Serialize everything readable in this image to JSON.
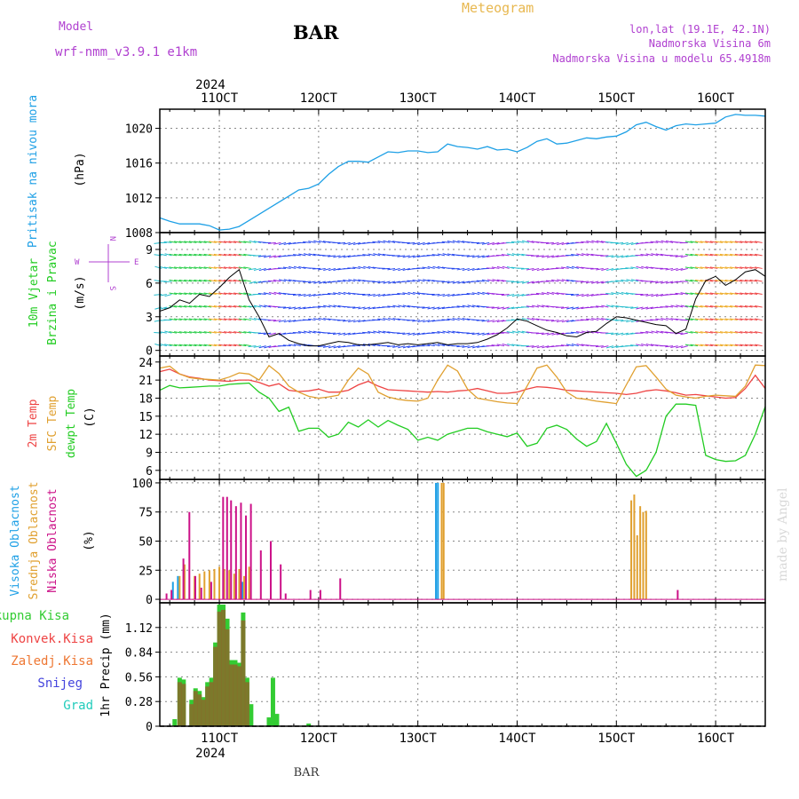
{
  "header": {
    "model_label": "Model",
    "model_name": "wrf-nmm_v3.9.1 e1km",
    "station": "BAR",
    "title": "Meteogram",
    "lonlat": "lon,lat (19.1E, 42.1N)",
    "elevation": "Nadmorska Visina 6m",
    "model_elevation": "Nadmorska Visina u modelu 65.4918m",
    "footer": "BAR",
    "watermark": "made by Angel",
    "year": "2024"
  },
  "colors": {
    "pressure": "#1ea0e6",
    "wind_speed": "#000000",
    "temp2m": "#ee4444",
    "sfc_temp": "#e0a030",
    "dewpoint": "#22cc22",
    "cloud_high": "#1ea0e6",
    "cloud_mid": "#e0a030",
    "cloud_low": "#cc1188",
    "precip_total": "#33cc33",
    "precip_conv": "#ee4444",
    "precip_frozen": "#ee7733",
    "precip_snow": "#4444dd",
    "precip_hail": "#22ccbb"
  },
  "chart_data": [
    {
      "type": "line",
      "panel": "pressure",
      "ylabels": [
        "Pritisak na nivou mora",
        "(hPa)"
      ],
      "x_ticks": [
        "11OCT",
        "12OCT",
        "13OCT",
        "14OCT",
        "15OCT",
        "16OCT"
      ],
      "y_ticks": [
        1008,
        1012,
        1016,
        1020
      ],
      "ylim": [
        1008,
        1022.2
      ],
      "xlim_days": [
        10.4,
        16.5
      ],
      "series": [
        {
          "x": [
            10.4,
            10.5,
            10.6,
            10.7,
            10.8,
            10.9,
            11.0,
            11.1,
            11.2,
            11.3,
            11.4,
            11.5,
            11.6,
            11.7,
            11.8,
            11.9,
            12.0,
            12.1,
            12.2,
            12.3,
            12.4,
            12.5,
            12.6,
            12.7,
            12.8,
            12.9,
            13.0,
            13.1,
            13.2,
            13.3,
            13.4,
            13.5,
            13.6,
            13.7,
            13.8,
            13.9,
            14.0,
            14.1,
            14.2,
            14.3,
            14.4,
            14.5,
            14.6,
            14.7,
            14.8,
            14.9,
            15.0,
            15.1,
            15.2,
            15.3,
            15.4,
            15.5,
            15.6,
            15.7,
            15.8,
            15.9,
            16.0,
            16.1,
            16.2,
            16.3,
            16.4,
            16.5
          ],
          "values": [
            1009.7,
            1009.3,
            1009.0,
            1009.0,
            1009.0,
            1008.8,
            1008.3,
            1008.4,
            1008.7,
            1009.4,
            1010.1,
            1010.8,
            1011.5,
            1012.2,
            1012.9,
            1013.1,
            1013.6,
            1014.7,
            1015.6,
            1016.2,
            1016.2,
            1016.1,
            1016.7,
            1017.3,
            1017.2,
            1017.4,
            1017.4,
            1017.2,
            1017.3,
            1018.2,
            1017.9,
            1017.8,
            1017.6,
            1017.9,
            1017.5,
            1017.6,
            1017.3,
            1017.8,
            1018.5,
            1018.8,
            1018.2,
            1018.3,
            1018.6,
            1018.9,
            1018.8,
            1019.0,
            1019.1,
            1019.6,
            1020.4,
            1020.7,
            1020.2,
            1019.8,
            1020.3,
            1020.5,
            1020.4,
            1020.5,
            1020.6,
            1021.3,
            1021.6,
            1021.5,
            1021.5,
            1021.4
          ]
        }
      ]
    },
    {
      "type": "line",
      "panel": "wind",
      "ylabels": [
        "10m Vjetar",
        "Brzina i Pravac",
        "(m/s)"
      ],
      "compass": {
        "n": "N",
        "s": "S",
        "e": "E",
        "w": "W"
      },
      "y_ticks": [
        0,
        3,
        6,
        9
      ],
      "ylim": [
        -0.5,
        10.5
      ],
      "xlim_days": [
        10.4,
        16.5
      ],
      "series": [
        {
          "x": [
            10.4,
            10.5,
            10.6,
            10.7,
            10.8,
            10.9,
            11.0,
            11.1,
            11.2,
            11.3,
            11.4,
            11.5,
            11.6,
            11.7,
            11.8,
            11.9,
            12.0,
            12.1,
            12.2,
            12.3,
            12.4,
            12.5,
            12.6,
            12.7,
            12.8,
            12.9,
            13.0,
            13.1,
            13.2,
            13.3,
            13.4,
            13.5,
            13.6,
            13.7,
            13.8,
            13.9,
            14.0,
            14.1,
            14.2,
            14.3,
            14.4,
            14.5,
            14.6,
            14.7,
            14.8,
            14.9,
            15.0,
            15.1,
            15.2,
            15.3,
            15.4,
            15.5,
            15.6,
            15.7,
            15.8,
            15.9,
            16.0,
            16.1,
            16.2,
            16.3,
            16.4,
            16.5
          ],
          "values": [
            3.5,
            3.8,
            4.5,
            4.2,
            5.0,
            4.8,
            5.6,
            6.5,
            7.2,
            4.5,
            3.0,
            1.2,
            1.5,
            0.9,
            0.6,
            0.4,
            0.4,
            0.6,
            0.8,
            0.7,
            0.5,
            0.5,
            0.6,
            0.7,
            0.5,
            0.6,
            0.5,
            0.6,
            0.7,
            0.5,
            0.6,
            0.6,
            0.7,
            1.0,
            1.4,
            2.0,
            2.8,
            2.6,
            2.2,
            1.8,
            1.6,
            1.3,
            1.2,
            1.6,
            1.7,
            2.4,
            3.0,
            2.9,
            2.7,
            2.5,
            2.3,
            2.2,
            1.5,
            1.9,
            4.6,
            6.2,
            6.6,
            5.8,
            6.3,
            7.0,
            7.2,
            6.6
          ]
        }
      ]
    },
    {
      "type": "line",
      "panel": "temperature",
      "ylabels": [
        "2m Temp",
        "SFC Temp",
        "dewpt Temp",
        "(C)"
      ],
      "y_ticks": [
        6,
        9,
        12,
        15,
        18,
        21,
        24
      ],
      "ylim": [
        4.5,
        25
      ],
      "xlim_days": [
        10.4,
        16.5
      ],
      "series": [
        {
          "name": "2m Temp",
          "x": [
            10.4,
            10.5,
            10.6,
            10.7,
            10.8,
            10.9,
            11.0,
            11.1,
            11.2,
            11.3,
            11.4,
            11.5,
            11.6,
            11.7,
            11.8,
            11.9,
            12.0,
            12.1,
            12.2,
            12.3,
            12.4,
            12.5,
            12.6,
            12.7,
            12.8,
            12.9,
            13.0,
            13.1,
            13.2,
            13.3,
            13.4,
            13.5,
            13.6,
            13.7,
            13.8,
            13.9,
            14.0,
            14.1,
            14.2,
            14.3,
            14.4,
            14.5,
            14.6,
            14.7,
            14.8,
            14.9,
            15.0,
            15.1,
            15.2,
            15.3,
            15.4,
            15.5,
            15.6,
            15.7,
            15.8,
            15.9,
            16.0,
            16.1,
            16.2,
            16.3,
            16.4,
            16.5
          ],
          "values": [
            22.4,
            22.8,
            22.0,
            21.5,
            21.3,
            21.0,
            20.9,
            20.8,
            21.0,
            21.0,
            20.6,
            20.0,
            20.4,
            19.3,
            19.1,
            19.2,
            19.5,
            19.0,
            19.0,
            19.3,
            20.2,
            20.8,
            20.0,
            19.4,
            19.3,
            19.2,
            19.1,
            19.0,
            19.1,
            19.0,
            19.2,
            19.3,
            19.6,
            19.2,
            18.8,
            18.8,
            19.0,
            19.5,
            19.9,
            19.8,
            19.6,
            19.3,
            19.2,
            19.1,
            19.0,
            18.9,
            18.8,
            18.6,
            18.8,
            19.2,
            19.4,
            19.2,
            18.9,
            18.5,
            18.6,
            18.4,
            18.2,
            18.0,
            18.1,
            19.6,
            21.8,
            19.6
          ]
        },
        {
          "name": "SFC Temp",
          "x": [
            10.4,
            10.5,
            10.6,
            10.7,
            10.8,
            10.9,
            11.0,
            11.1,
            11.2,
            11.3,
            11.4,
            11.5,
            11.6,
            11.7,
            11.8,
            11.9,
            12.0,
            12.1,
            12.2,
            12.3,
            12.4,
            12.5,
            12.6,
            12.7,
            12.8,
            12.9,
            13.0,
            13.1,
            13.2,
            13.3,
            13.4,
            13.5,
            13.6,
            13.7,
            13.8,
            13.9,
            14.0,
            14.1,
            14.2,
            14.3,
            14.4,
            14.5,
            14.6,
            14.7,
            14.8,
            14.9,
            15.0,
            15.1,
            15.2,
            15.3,
            15.4,
            15.5,
            15.6,
            15.7,
            15.8,
            15.9,
            16.0,
            16.1,
            16.2,
            16.3,
            16.4,
            16.5
          ],
          "values": [
            23.0,
            23.3,
            22.0,
            21.4,
            21.2,
            21.1,
            21.0,
            21.5,
            22.2,
            22.0,
            21.0,
            23.4,
            22.1,
            20.0,
            19.0,
            18.3,
            18.0,
            18.2,
            18.5,
            21.0,
            23.0,
            22.0,
            19.0,
            18.2,
            17.8,
            17.6,
            17.5,
            18.0,
            21.0,
            23.5,
            22.5,
            19.5,
            18.0,
            17.7,
            17.4,
            17.2,
            17.1,
            20.0,
            23.0,
            23.5,
            21.5,
            19.0,
            18.0,
            17.8,
            17.5,
            17.3,
            17.1,
            20.2,
            23.2,
            23.4,
            21.5,
            19.5,
            18.5,
            18.2,
            18.0,
            18.3,
            18.5,
            18.4,
            18.3,
            20.0,
            23.5,
            23.4
          ]
        },
        {
          "name": "dewpt Temp",
          "x": [
            10.4,
            10.5,
            10.6,
            10.7,
            10.8,
            10.9,
            11.0,
            11.1,
            11.2,
            11.3,
            11.4,
            11.5,
            11.6,
            11.7,
            11.8,
            11.9,
            12.0,
            12.1,
            12.2,
            12.3,
            12.4,
            12.5,
            12.6,
            12.7,
            12.8,
            12.9,
            13.0,
            13.1,
            13.2,
            13.3,
            13.4,
            13.5,
            13.6,
            13.7,
            13.8,
            13.9,
            14.0,
            14.1,
            14.2,
            14.3,
            14.4,
            14.5,
            14.6,
            14.7,
            14.8,
            14.9,
            15.0,
            15.1,
            15.2,
            15.3,
            15.4,
            15.5,
            15.6,
            15.7,
            15.8,
            15.9,
            16.0,
            16.1,
            16.2,
            16.3,
            16.4,
            16.5
          ],
          "values": [
            19.3,
            20.1,
            19.7,
            19.8,
            19.9,
            20.0,
            20.0,
            20.3,
            20.4,
            20.5,
            19.0,
            18.0,
            15.8,
            16.5,
            12.5,
            13.0,
            13.0,
            11.5,
            12.0,
            14.0,
            13.2,
            14.4,
            13.2,
            14.3,
            13.5,
            12.8,
            11.0,
            11.5,
            11.0,
            12.0,
            12.5,
            13.0,
            13.0,
            12.4,
            12.0,
            11.6,
            12.2,
            10.0,
            10.5,
            13.0,
            13.5,
            12.8,
            11.2,
            10.0,
            10.8,
            13.8,
            10.5,
            7.0,
            5.0,
            6.0,
            9.0,
            15.0,
            17.0,
            17.0,
            16.8,
            8.5,
            7.8,
            7.5,
            7.6,
            8.5,
            12.0,
            16.6
          ]
        }
      ]
    },
    {
      "type": "bar",
      "panel": "clouds",
      "ylabels": [
        "Visoka Oblacnost",
        "Srednja Oblacnost",
        "Niska Oblacnost",
        "(%)"
      ],
      "y_ticks": [
        0,
        25,
        50,
        75,
        100
      ],
      "ylim": [
        -3,
        103
      ],
      "xlim_days": [
        10.4,
        16.5
      ],
      "series": [
        {
          "name": "Visoka Oblacnost",
          "x": [
            10.55,
            10.6,
            11.25,
            12.2,
            13.2,
            13.22
          ],
          "values": [
            15,
            20,
            15,
            0,
            100,
            100
          ]
        },
        {
          "name": "Srednja Oblacnost",
          "x": [
            10.6,
            10.65,
            10.75,
            10.8,
            10.85,
            10.9,
            10.95,
            11.0,
            11.05,
            11.1,
            11.15,
            11.2,
            11.25,
            11.3,
            13.24,
            13.26,
            15.15,
            15.18,
            15.21,
            15.24,
            15.27,
            15.3
          ],
          "values": [
            20,
            30,
            20,
            22,
            24,
            25,
            26,
            28,
            26,
            25,
            22,
            26,
            20,
            28,
            100,
            100,
            85,
            90,
            55,
            80,
            75,
            76
          ]
        },
        {
          "name": "Niska Oblacnost",
          "x": [
            10.45,
            10.5,
            10.62,
            10.68,
            10.74,
            10.8,
            10.9,
            11.02,
            11.06,
            11.1,
            11.15,
            11.2,
            11.25,
            11.3,
            11.4,
            11.5,
            11.6,
            11.65,
            11.9,
            12.0,
            12.2,
            15.6
          ],
          "values": [
            5,
            8,
            35,
            75,
            20,
            10,
            15,
            88,
            88,
            85,
            80,
            83,
            72,
            82,
            42,
            50,
            30,
            5,
            8,
            8,
            18,
            8
          ]
        }
      ]
    },
    {
      "type": "bar",
      "panel": "precip",
      "ylabels": [
        "1hr Precip (mm)"
      ],
      "legend": [
        "Ukupna Kisa",
        "Konvek.Kisa",
        "Zaledj.Kisa",
        "Snijeg",
        "Grad"
      ],
      "y_ticks": [
        0,
        0.28,
        0.56,
        0.84,
        1.12
      ],
      "ylim": [
        0,
        1.4
      ],
      "xlim_days": [
        10.4,
        16.5
      ],
      "series": [
        {
          "name": "Ukupna Kisa",
          "x": [
            10.55,
            10.6,
            10.64,
            10.72,
            10.76,
            10.8,
            10.84,
            10.88,
            10.92,
            10.96,
            11.0,
            11.04,
            11.08,
            11.12,
            11.16,
            11.2,
            11.24,
            11.28,
            11.32,
            11.5,
            11.54,
            11.58,
            11.9
          ],
          "values": [
            0.08,
            0.55,
            0.53,
            0.3,
            0.43,
            0.4,
            0.33,
            0.5,
            0.55,
            0.95,
            1.38,
            1.38,
            1.22,
            0.75,
            0.75,
            0.72,
            1.29,
            0.55,
            0.25,
            0.1,
            0.55,
            0.14,
            0.03
          ]
        },
        {
          "name": "Konvek.Kisa",
          "x": [
            10.6,
            10.64,
            10.72,
            10.76,
            10.8,
            10.84,
            10.88,
            10.92,
            10.96,
            11.0,
            11.04,
            11.08,
            11.12,
            11.16,
            11.2,
            11.24,
            11.28
          ],
          "values": [
            0.5,
            0.48,
            0.25,
            0.4,
            0.36,
            0.3,
            0.45,
            0.5,
            0.9,
            1.3,
            1.32,
            1.1,
            0.7,
            0.7,
            0.68,
            1.2,
            0.5
          ]
        }
      ]
    }
  ]
}
